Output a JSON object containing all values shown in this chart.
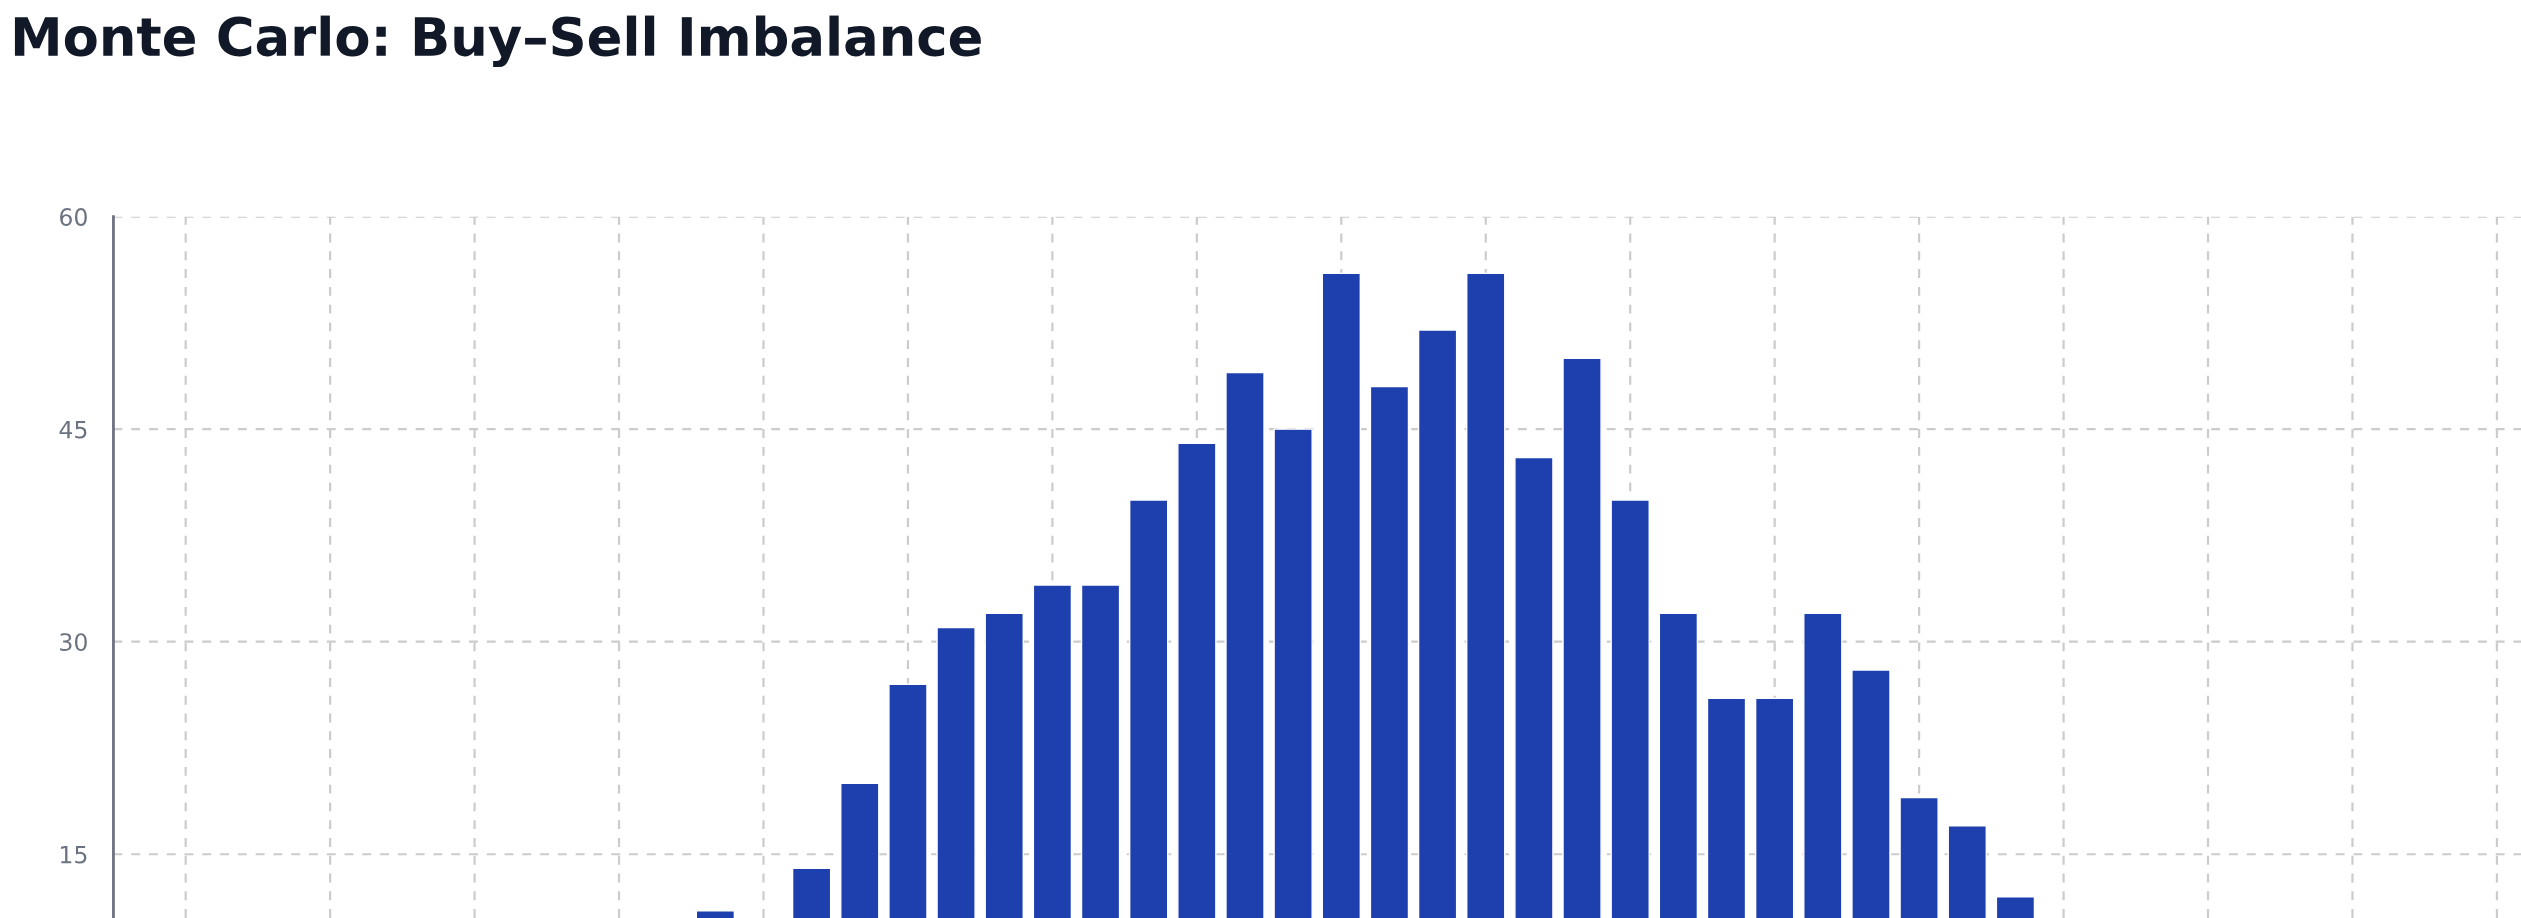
{
  "chart_data": {
    "type": "bar",
    "title": "Monte Carlo: Buy–Sell Imbalance",
    "categories": [
      null,
      null,
      null,
      null,
      null,
      null,
      null,
      null,
      null,
      null,
      null,
      null,
      null,
      null,
      null,
      null,
      null,
      null,
      null,
      null,
      null,
      null,
      null,
      null,
      null,
      null,
      null,
      null,
      null,
      null,
      null,
      null,
      null,
      null,
      null,
      null,
      null,
      null,
      null,
      null,
      null,
      null,
      null,
      null,
      null,
      null,
      null,
      null,
      null,
      null
    ],
    "values": [
      null,
      null,
      null,
      null,
      null,
      null,
      null,
      null,
      null,
      null,
      null,
      null,
      11,
      null,
      14,
      20,
      27,
      31,
      32,
      34,
      34,
      40,
      44,
      49,
      45,
      56,
      48,
      52,
      56,
      43,
      50,
      40,
      32,
      26,
      26,
      32,
      28,
      19,
      17,
      12,
      null,
      null,
      null,
      null,
      null,
      null,
      null,
      null,
      null,
      null
    ],
    "color": "#1e40af",
    "ylim": [
      10.5,
      60
    ],
    "yticks": [
      15,
      30,
      45,
      60
    ],
    "grid": true,
    "tick_labels": "y"
  }
}
